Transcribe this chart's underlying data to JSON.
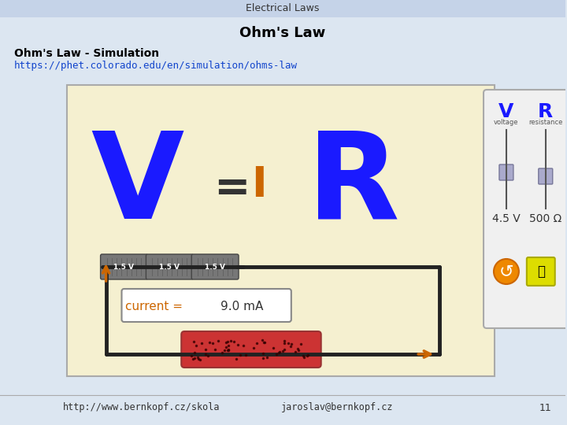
{
  "bg_color": "#dce6f1",
  "header_text": "Electrical Laws",
  "title_text": "Ohm's Law",
  "subtitle_text": "Ohm's Law - Simulation",
  "link_text": "https://phet.colorado.edu/en/simulation/ohms-law",
  "footer_left": "http://www.bernkopf.cz/skola",
  "footer_right": "jaroslav@bernkopf.cz",
  "footer_page": "11",
  "sim_bg": "#f5f0d0",
  "sim_border": "#888888",
  "panel_bg": "#f0f0f0",
  "panel_border": "#aaaaaa",
  "v_color": "#1a1aff",
  "r_color": "#1a1aff",
  "i_color": "#cc6600",
  "eq_color": "#333333",
  "current_label_color": "#cc6600",
  "current_value_color": "#333333",
  "arrow_color": "#cc6600",
  "battery_colors": [
    "#888888",
    "#888888",
    "#888888"
  ],
  "slider_track_color": "#444444",
  "slider_handle_color": "#aaaacc",
  "voltage_val": "4.5 V",
  "resistance_val": "500 Ω",
  "current_val": "9.0 mA"
}
